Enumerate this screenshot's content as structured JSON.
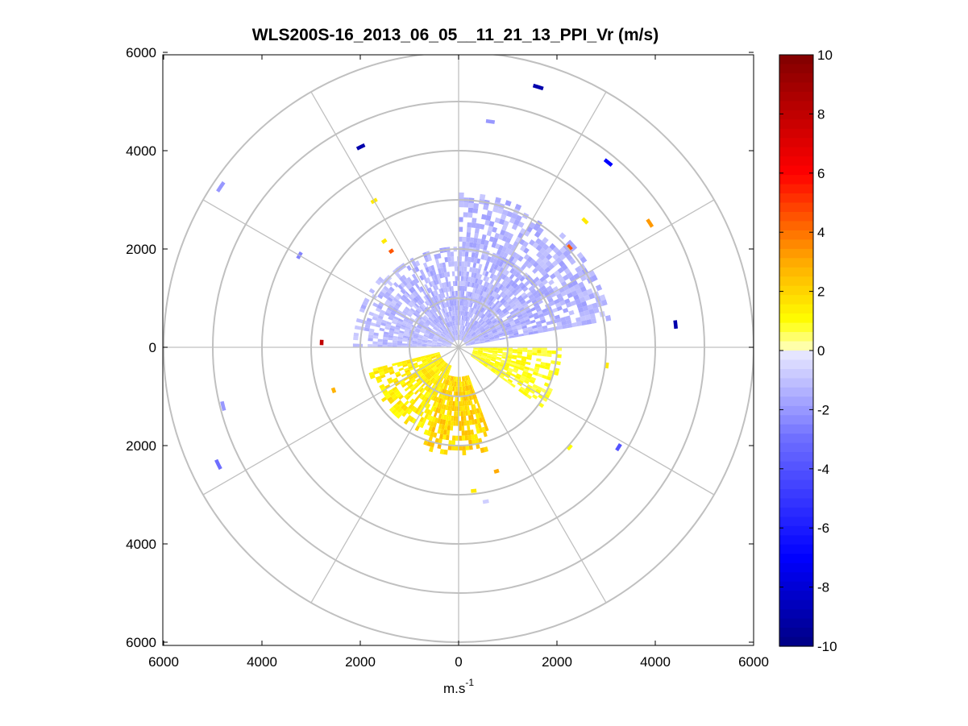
{
  "chart_data": {
    "type": "heatmap",
    "subtype": "polar-ppi",
    "title": "WLS200S-16_2013_06_05__11_21_13_PPI_Vr (m/s)",
    "xlabel": "m.s",
    "xlabel_sup": "-1",
    "ylabel": "",
    "xlim": [
      -6000,
      6000
    ],
    "ylim": [
      -6000,
      6000
    ],
    "x_ticks": [
      -6000,
      -4000,
      -2000,
      0,
      2000,
      4000,
      6000
    ],
    "x_tick_labels": [
      "6000",
      "4000",
      "2000",
      "0",
      "2000",
      "4000",
      "6000"
    ],
    "y_ticks": [
      6000,
      4000,
      2000,
      0,
      -2000,
      -4000,
      -6000
    ],
    "y_tick_labels": [
      "6000",
      "4000",
      "2000",
      "0",
      "2000",
      "4000",
      "6000"
    ],
    "range_rings": [
      1000,
      2000,
      3000,
      4000,
      5000,
      6000
    ],
    "spoke_angles_deg": [
      0,
      30,
      60,
      90,
      120,
      150,
      180,
      210,
      240,
      270,
      300,
      330
    ],
    "colorbar": {
      "min": -10,
      "max": 10,
      "ticks": [
        10,
        8,
        6,
        4,
        2,
        0,
        -2,
        -4,
        -6,
        -8,
        -10
      ],
      "tick_labels": [
        "10",
        "8",
        "6",
        "4",
        "2",
        "0",
        "-2",
        "-4",
        "-6",
        "-8",
        "-10"
      ],
      "colormap": "blue-white-yellow-red"
    },
    "field_regions": [
      {
        "name": "approaching-north",
        "az_from": 315,
        "az_to": 360,
        "r_min": 150,
        "r_max": 2000,
        "value": -1.5
      },
      {
        "name": "approaching-northeast",
        "az_from": 0,
        "az_to": 80,
        "r_min": 150,
        "r_max": 3100,
        "value": -1.5
      },
      {
        "name": "approaching-west",
        "az_from": 270,
        "az_to": 315,
        "r_min": 150,
        "r_max": 2100,
        "value": -1.3
      },
      {
        "name": "receding-east",
        "az_from": 90,
        "az_to": 125,
        "r_min": 300,
        "r_max": 2100,
        "value": 1.0
      },
      {
        "name": "receding-south",
        "az_from": 160,
        "az_to": 200,
        "r_min": 600,
        "r_max": 2200,
        "value": 2.2
      },
      {
        "name": "receding-southwest",
        "az_from": 200,
        "az_to": 255,
        "r_min": 400,
        "r_max": 1900,
        "value": 1.6
      }
    ],
    "gates": [
      {
        "az": 17,
        "r": 5500,
        "value": -9
      },
      {
        "az": 8,
        "r": 4600,
        "value": -2
      },
      {
        "az": 334,
        "r": 4500,
        "value": -9
      },
      {
        "az": 304,
        "r": 5800,
        "value": -2
      },
      {
        "az": 39,
        "r": 4800,
        "value": -7
      },
      {
        "az": 57,
        "r": 4600,
        "value": 3.3
      },
      {
        "az": 84,
        "r": 4400,
        "value": -9
      },
      {
        "az": 300,
        "r": 3700,
        "value": -2.5
      },
      {
        "az": 330,
        "r": 3400,
        "value": 1.5
      },
      {
        "az": 325,
        "r": 2600,
        "value": 1.5
      },
      {
        "az": 325,
        "r": 2350,
        "value": 4.5
      },
      {
        "az": 272,
        "r": 2750,
        "value": 8
      },
      {
        "az": 251,
        "r": 2650,
        "value": 2.8
      },
      {
        "az": 256,
        "r": 4900,
        "value": -2
      },
      {
        "az": 244,
        "r": 5400,
        "value": -3
      },
      {
        "az": 122,
        "r": 3800,
        "value": -4
      },
      {
        "az": 132,
        "r": 3000,
        "value": 1
      },
      {
        "az": 163,
        "r": 2600,
        "value": 3
      },
      {
        "az": 174,
        "r": 2900,
        "value": 1.5
      },
      {
        "az": 170,
        "r": 3150,
        "value": -0.7
      },
      {
        "az": 48,
        "r": 3000,
        "value": 4.5
      },
      {
        "az": 45,
        "r": 3600,
        "value": 1.5
      },
      {
        "az": 97,
        "r": 3000,
        "value": 1.5
      },
      {
        "az": 93,
        "r": 1600,
        "value": 1.5
      }
    ]
  }
}
